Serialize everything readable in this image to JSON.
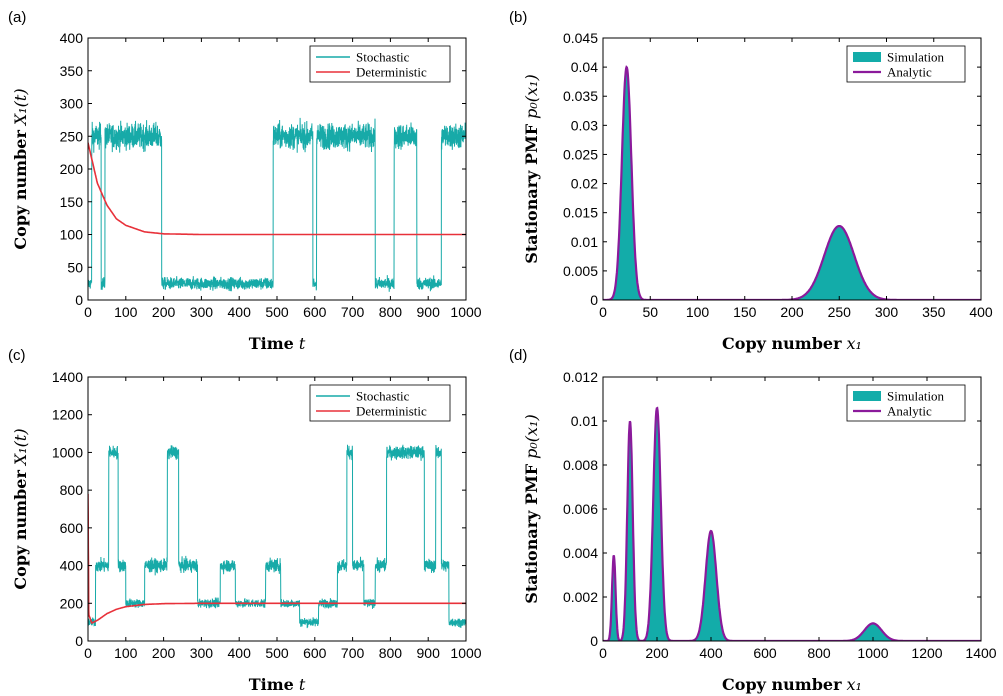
{
  "colors": {
    "stochastic": "#17aaa8",
    "deterministic": "#e8313a",
    "simulation": "#13aca9",
    "analytic": "#8b1a9b"
  },
  "chart_data": [
    {
      "id": "a",
      "panel_label": "(a)",
      "type": "line",
      "xlabel": "Time",
      "xlabel_var": "t",
      "ylabel": "Copy number",
      "ylabel_var": "X₁(t)",
      "xlim": [
        0,
        1000
      ],
      "ylim": [
        0,
        400
      ],
      "xticks": [
        0,
        100,
        200,
        300,
        400,
        500,
        600,
        700,
        800,
        900,
        1000
      ],
      "yticks": [
        0,
        50,
        100,
        150,
        200,
        250,
        300,
        350,
        400
      ],
      "legend": "top-right",
      "legend_entries": [
        "Stochastic",
        "Deterministic"
      ],
      "series": [
        {
          "name": "Stochastic",
          "kind": "noisy-switching",
          "segments": [
            [
              0,
              10,
              25
            ],
            [
              10,
              35,
              250
            ],
            [
              35,
              45,
              25
            ],
            [
              45,
              195,
              250
            ],
            [
              195,
              490,
              25
            ],
            [
              490,
              595,
              250
            ],
            [
              595,
              605,
              25
            ],
            [
              605,
              760,
              250
            ],
            [
              760,
              810,
              25
            ],
            [
              810,
              870,
              250
            ],
            [
              870,
              935,
              25
            ],
            [
              935,
              1000,
              250
            ]
          ],
          "noise": [
            12,
            25
          ]
        },
        {
          "name": "Deterministic",
          "x": [
            0,
            25,
            50,
            75,
            100,
            150,
            200,
            300,
            500,
            1000
          ],
          "y": [
            240,
            178,
            145,
            124,
            114,
            104,
            101,
            100,
            100,
            100
          ]
        }
      ]
    },
    {
      "id": "b",
      "panel_label": "(b)",
      "type": "area",
      "xlabel": "Copy number",
      "xlabel_var": "x₁",
      "ylabel": "Stationary PMF",
      "ylabel_var": "p₀(x₁)",
      "xlim": [
        0,
        400
      ],
      "ylim": [
        0,
        0.045
      ],
      "xticks": [
        0,
        50,
        100,
        150,
        200,
        250,
        300,
        350,
        400
      ],
      "yticks": [
        "0",
        "0.005",
        "0.01",
        "0.015",
        "0.02",
        "0.025",
        "0.03",
        "0.035",
        "0.04",
        "0.045"
      ],
      "legend": "top-right",
      "legend_entries": [
        "Simulation",
        "Analytic"
      ],
      "peaks": [
        {
          "center": 25,
          "height": 0.04,
          "width": 5
        },
        {
          "center": 250,
          "height": 0.0127,
          "width": 15.8
        }
      ]
    },
    {
      "id": "c",
      "panel_label": "(c)",
      "type": "line",
      "xlabel": "Time",
      "xlabel_var": "t",
      "ylabel": "Copy number",
      "ylabel_var": "X₁(t)",
      "xlim": [
        0,
        1000
      ],
      "ylim": [
        0,
        1400
      ],
      "xticks": [
        0,
        100,
        200,
        300,
        400,
        500,
        600,
        700,
        800,
        900,
        1000
      ],
      "yticks": [
        0,
        200,
        400,
        600,
        800,
        1000,
        1200,
        1400
      ],
      "legend": "top-right",
      "legend_entries": [
        "Stochastic",
        "Deterministic"
      ],
      "series": [
        {
          "name": "Stochastic",
          "kind": "noisy-switching",
          "segments": [
            [
              0,
              20,
              100
            ],
            [
              20,
              55,
              400
            ],
            [
              55,
              80,
              1000
            ],
            [
              80,
              100,
              400
            ],
            [
              100,
              150,
              200
            ],
            [
              150,
              210,
              400
            ],
            [
              210,
              240,
              1000
            ],
            [
              240,
              290,
              400
            ],
            [
              290,
              350,
              200
            ],
            [
              350,
              390,
              400
            ],
            [
              390,
              470,
              200
            ],
            [
              470,
              510,
              400
            ],
            [
              510,
              560,
              200
            ],
            [
              560,
              610,
              100
            ],
            [
              610,
              660,
              200
            ],
            [
              660,
              685,
              400
            ],
            [
              685,
              700,
              1000
            ],
            [
              700,
              730,
              400
            ],
            [
              730,
              760,
              200
            ],
            [
              760,
              790,
              400
            ],
            [
              790,
              890,
              1000
            ],
            [
              890,
              920,
              400
            ],
            [
              920,
              935,
              1000
            ],
            [
              935,
              955,
              400
            ],
            [
              955,
              975,
              100
            ],
            [
              975,
              1000,
              100
            ]
          ],
          "noise": [
            30,
            45
          ]
        },
        {
          "name": "Deterministic",
          "x": [
            0,
            2,
            10,
            25,
            50,
            75,
            100,
            150,
            200,
            300,
            500,
            1000
          ],
          "y": [
            780,
            140,
            95,
            110,
            145,
            168,
            182,
            194,
            198,
            200,
            200,
            200
          ]
        }
      ]
    },
    {
      "id": "d",
      "panel_label": "(d)",
      "type": "area",
      "xlabel": "Copy number",
      "xlabel_var": "x₁",
      "ylabel": "Stationary PMF",
      "ylabel_var": "p₀(x₁)",
      "xlim": [
        0,
        1400
      ],
      "ylim": [
        0,
        0.012
      ],
      "xticks": [
        0,
        200,
        400,
        600,
        800,
        1000,
        1200,
        1400
      ],
      "yticks": [
        "0",
        "0.002",
        "0.004",
        "0.006",
        "0.008",
        "0.01",
        "0.012"
      ],
      "legend": "top-right",
      "legend_entries": [
        "Simulation",
        "Analytic"
      ],
      "peaks": [
        {
          "center": 40,
          "height": 0.0039,
          "width": 6.5
        },
        {
          "center": 100,
          "height": 0.01,
          "width": 10
        },
        {
          "center": 200,
          "height": 0.0106,
          "width": 14
        },
        {
          "center": 400,
          "height": 0.005,
          "width": 20
        },
        {
          "center": 1000,
          "height": 0.0008,
          "width": 32
        }
      ]
    }
  ]
}
